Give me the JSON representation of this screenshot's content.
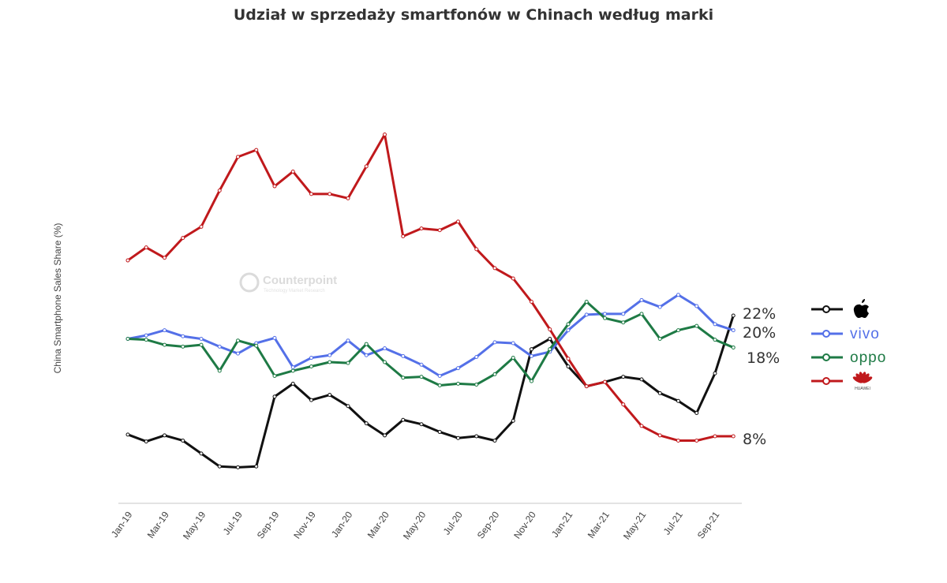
{
  "chart_data": {
    "type": "line",
    "title": "Udział w sprzedaży smartfonów w Chinach według marki",
    "xlabel": "",
    "ylabel": "China Smartphone Sales Share (%)",
    "ylim": [
      0,
      45
    ],
    "grid": false,
    "legend_position": "right",
    "watermark": {
      "name": "Counterpoint",
      "tagline": "Technology Market Research"
    },
    "x": [
      "Jan-19",
      "Feb-19",
      "Mar-19",
      "Apr-19",
      "May-19",
      "Jun-19",
      "Jul-19",
      "Aug-19",
      "Sep-19",
      "Oct-19",
      "Nov-19",
      "Dec-19",
      "Jan-20",
      "Feb-20",
      "Mar-20",
      "Apr-20",
      "May-20",
      "Jun-20",
      "Jul-20",
      "Aug-20",
      "Sep-20",
      "Oct-20",
      "Nov-20",
      "Dec-20",
      "Jan-21",
      "Feb-21",
      "Mar-21",
      "Apr-21",
      "May-21",
      "Jun-21",
      "Jul-21",
      "Aug-21",
      "Sep-21",
      "Oct-21"
    ],
    "x_tick_labels": [
      "Jan-19",
      "Mar-19",
      "May-19",
      "Jul-19",
      "Sep-19",
      "Nov-19",
      "Jan-20",
      "Mar-20",
      "May-20",
      "Jul-20",
      "Sep-20",
      "Nov-20",
      "Jan-21",
      "Mar-21",
      "May-21",
      "Jul-21",
      "Sep-21"
    ],
    "series": [
      {
        "name": "Apple",
        "color": "#111111",
        "end_label": "22%",
        "values": [
          8.2,
          7.4,
          8.1,
          7.5,
          6.0,
          4.5,
          4.4,
          4.5,
          12.6,
          14.1,
          12.2,
          12.8,
          11.5,
          9.5,
          8.1,
          9.9,
          9.4,
          8.5,
          7.8,
          8.0,
          7.5,
          9.8,
          18.1,
          19.3,
          16.1,
          13.8,
          14.3,
          14.9,
          14.6,
          13.0,
          12.1,
          10.7,
          15.3,
          22.0
        ]
      },
      {
        "name": "vivo",
        "color": "#5470e8",
        "end_label": "20%",
        "values": [
          19.3,
          19.7,
          20.3,
          19.6,
          19.3,
          18.4,
          17.6,
          18.8,
          19.4,
          16.0,
          17.1,
          17.4,
          19.1,
          17.4,
          18.2,
          17.3,
          16.3,
          15.0,
          15.9,
          17.2,
          18.9,
          18.8,
          17.3,
          17.8,
          20.3,
          22.1,
          22.2,
          22.2,
          23.8,
          23.0,
          24.4,
          23.1,
          21.0,
          20.3
        ]
      },
      {
        "name": "oppo",
        "color": "#1e7a45",
        "end_label": "18%",
        "values": [
          19.3,
          19.2,
          18.6,
          18.4,
          18.6,
          15.6,
          19.1,
          18.5,
          15.0,
          15.6,
          16.1,
          16.6,
          16.5,
          18.7,
          16.6,
          14.8,
          14.9,
          13.9,
          14.1,
          14.0,
          15.2,
          17.1,
          14.4,
          18.1,
          21.0,
          23.6,
          21.7,
          21.2,
          22.2,
          19.3,
          20.3,
          20.8,
          19.2,
          18.3
        ]
      },
      {
        "name": "HUAWEI",
        "color": "#c0191c",
        "end_label": "8%",
        "values": [
          28.4,
          29.9,
          28.7,
          31.0,
          32.3,
          36.5,
          40.4,
          41.2,
          37.0,
          38.7,
          36.1,
          36.1,
          35.6,
          39.3,
          43.0,
          31.2,
          32.1,
          31.9,
          32.9,
          29.7,
          27.5,
          26.3,
          23.6,
          20.4,
          17.0,
          13.8,
          14.3,
          11.7,
          9.2,
          8.1,
          7.5,
          7.5,
          8.0,
          8.0
        ]
      }
    ]
  }
}
